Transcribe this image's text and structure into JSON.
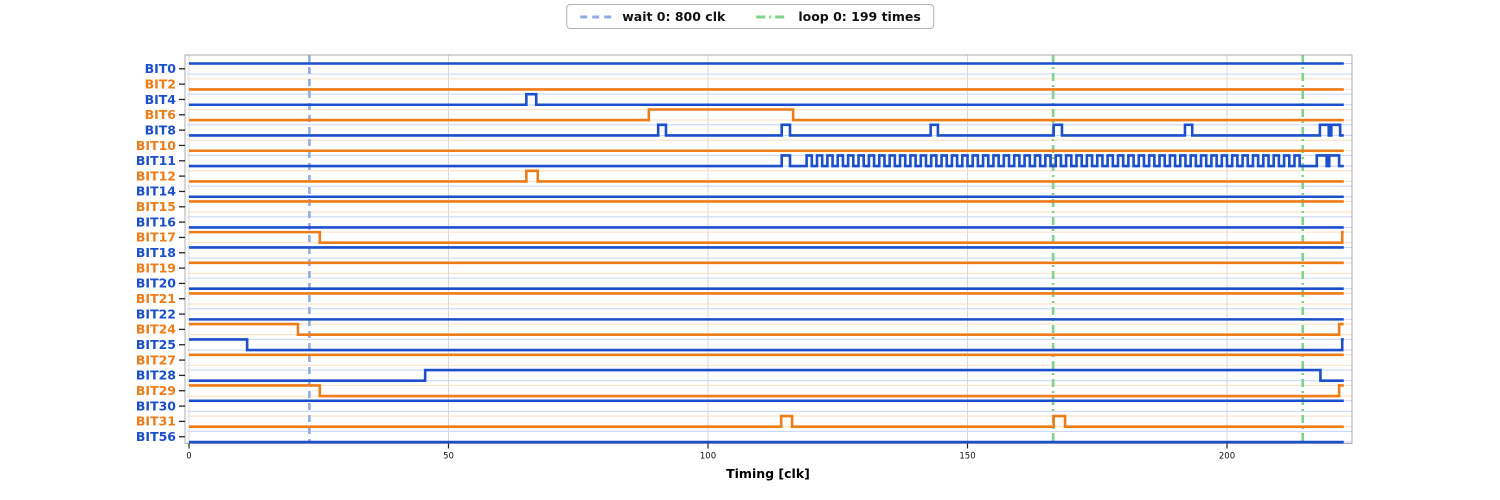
{
  "legend": {
    "items": [
      {
        "label": "wait 0: 800 clk",
        "type": "dashed",
        "color": "#93ace4"
      },
      {
        "label": "loop 0: 199 times",
        "type": "dashdot",
        "color": "#7fd289"
      }
    ]
  },
  "colors": {
    "blue": "#1c4fcb",
    "orange": "#ee7c18",
    "blue_faint": "#ccd9f4",
    "orange_faint": "#f9e2c8",
    "wait_line": "#93ace4",
    "loop_line": "#7fd289",
    "grid": "#d9d9d9",
    "tick": "#262626",
    "spine": "#9a9a9a"
  },
  "chart_data": {
    "type": "line",
    "subtype": "digital-timing-waveform",
    "title": "",
    "xlabel": "Timing [clk]",
    "ylabel": "",
    "xlim": [
      0,
      222.5
    ],
    "xticks": [
      0,
      50,
      100,
      150,
      200
    ],
    "grid": "vertical-at-xticks",
    "legend_position": "top-center",
    "markers": [
      {
        "kind": "wait",
        "label": "wait 0: 800 clk",
        "t": 23.2
      },
      {
        "kind": "loop",
        "label": "loop 0: 199 times",
        "t": 166.5
      },
      {
        "kind": "loop",
        "label": "loop 0: 199 times",
        "t": 214.6
      }
    ],
    "signals": [
      {
        "name": "BIT0",
        "color": "blue",
        "initial": 1,
        "edges": []
      },
      {
        "name": "BIT2",
        "color": "orange",
        "initial": 0,
        "edges": []
      },
      {
        "name": "BIT4",
        "color": "blue",
        "initial": 0,
        "edges": [
          [
            65,
            1
          ],
          [
            66.9,
            0
          ]
        ]
      },
      {
        "name": "BIT6",
        "color": "orange",
        "initial": 0,
        "edges": [
          [
            88.6,
            1
          ],
          [
            116.4,
            0
          ]
        ]
      },
      {
        "name": "BIT8",
        "color": "blue",
        "initial": 0,
        "edges": [
          [
            90.4,
            1
          ],
          [
            91.9,
            0
          ],
          [
            114.2,
            1
          ],
          [
            115.8,
            0
          ],
          [
            142.9,
            1
          ],
          [
            144.3,
            0
          ],
          [
            166.6,
            1
          ],
          [
            168.2,
            0
          ],
          [
            191.9,
            1
          ],
          [
            193.3,
            0
          ],
          [
            217.9,
            1
          ],
          [
            219.6,
            0
          ],
          [
            220.1,
            1
          ],
          [
            221.8,
            0
          ]
        ]
      },
      {
        "name": "BIT10",
        "color": "orange",
        "initial": 0,
        "edges": []
      },
      {
        "name": "BIT11",
        "color": "blue",
        "initial": 0,
        "edges": [
          [
            114.2,
            1
          ],
          [
            115.8,
            0
          ],
          [
            217.3,
            1
          ],
          [
            219.2,
            0
          ],
          [
            219.7,
            1
          ],
          [
            221.6,
            0
          ]
        ],
        "osc": {
          "start": 119,
          "end": 215,
          "period": 2
        }
      },
      {
        "name": "BIT12",
        "color": "orange",
        "initial": 0,
        "edges": [
          [
            65,
            1
          ],
          [
            67.2,
            0
          ]
        ]
      },
      {
        "name": "BIT14",
        "color": "blue",
        "initial": 0,
        "edges": []
      },
      {
        "name": "BIT15",
        "color": "orange",
        "initial": 1,
        "edges": []
      },
      {
        "name": "BIT16",
        "color": "blue",
        "initial": 0,
        "edges": []
      },
      {
        "name": "BIT17",
        "color": "orange",
        "initial": 1,
        "edges": [
          [
            25.2,
            0
          ],
          [
            222.2,
            1
          ]
        ]
      },
      {
        "name": "BIT18",
        "color": "blue",
        "initial": 1,
        "edges": []
      },
      {
        "name": "BIT19",
        "color": "orange",
        "initial": 1,
        "edges": []
      },
      {
        "name": "BIT20",
        "color": "blue",
        "initial": 0,
        "edges": []
      },
      {
        "name": "BIT21",
        "color": "orange",
        "initial": 1,
        "edges": []
      },
      {
        "name": "BIT22",
        "color": "blue",
        "initial": 0,
        "edges": []
      },
      {
        "name": "BIT24",
        "color": "orange",
        "initial": 1,
        "edges": [
          [
            21,
            0
          ],
          [
            221.6,
            1
          ]
        ]
      },
      {
        "name": "BIT25",
        "color": "blue",
        "initial": 1,
        "edges": [
          [
            11.2,
            0
          ],
          [
            222.2,
            1
          ]
        ]
      },
      {
        "name": "BIT27",
        "color": "orange",
        "initial": 1,
        "edges": []
      },
      {
        "name": "BIT28",
        "color": "blue",
        "initial": 0,
        "edges": [
          [
            45.5,
            1
          ],
          [
            218,
            0
          ]
        ]
      },
      {
        "name": "BIT29",
        "color": "orange",
        "initial": 1,
        "edges": [
          [
            25.2,
            0
          ],
          [
            221.6,
            1
          ]
        ]
      },
      {
        "name": "BIT30",
        "color": "blue",
        "initial": 1,
        "edges": []
      },
      {
        "name": "BIT31",
        "color": "orange",
        "initial": 0,
        "edges": [
          [
            114.1,
            1
          ],
          [
            116.2,
            0
          ],
          [
            166.6,
            1
          ],
          [
            168.8,
            0
          ]
        ]
      },
      {
        "name": "BIT56",
        "color": "blue",
        "initial": 0,
        "edges": []
      }
    ]
  }
}
